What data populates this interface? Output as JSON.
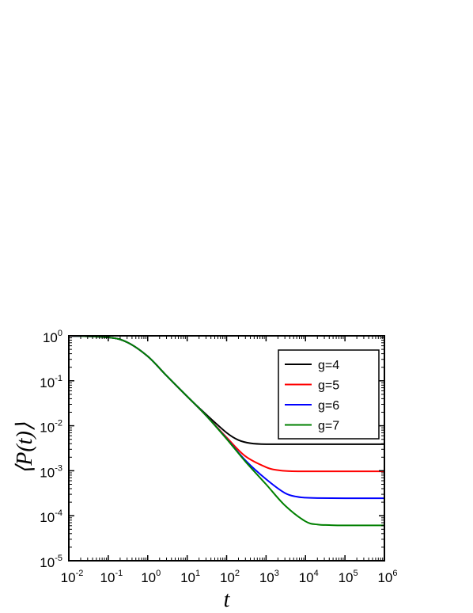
{
  "chart_data": {
    "type": "line",
    "title": "",
    "xlabel": "t",
    "ylabel": "⟨P(t)⟩",
    "xscale": "log",
    "yscale": "log",
    "xlim": [
      0.01,
      1000000
    ],
    "ylim": [
      1e-05,
      1
    ],
    "x_ticks": [
      {
        "base": "10",
        "exp": "-2"
      },
      {
        "base": "10",
        "exp": "-1"
      },
      {
        "base": "10",
        "exp": "0"
      },
      {
        "base": "10",
        "exp": "1"
      },
      {
        "base": "10",
        "exp": "2"
      },
      {
        "base": "10",
        "exp": "3"
      },
      {
        "base": "10",
        "exp": "4"
      },
      {
        "base": "10",
        "exp": "5"
      },
      {
        "base": "10",
        "exp": "6"
      }
    ],
    "y_ticks": [
      {
        "base": "10",
        "exp": "0"
      },
      {
        "base": "10",
        "exp": "-1"
      },
      {
        "base": "10",
        "exp": "-2"
      },
      {
        "base": "10",
        "exp": "-3"
      },
      {
        "base": "10",
        "exp": "-4"
      },
      {
        "base": "10",
        "exp": "-5"
      }
    ],
    "legend_position": "top-right",
    "grid": false,
    "series": [
      {
        "name": "g=4",
        "color": "#000000",
        "x": [
          0.01,
          0.1,
          0.3,
          1,
          3,
          10,
          30,
          100,
          200,
          400,
          1000,
          10000,
          100000,
          1000000
        ],
        "y": [
          1.0,
          0.92,
          0.72,
          0.35,
          0.13,
          0.045,
          0.018,
          0.007,
          0.0048,
          0.0041,
          0.0039,
          0.0039,
          0.0039,
          0.0039
        ]
      },
      {
        "name": "g=5",
        "color": "#ff0000",
        "x": [
          0.01,
          0.1,
          0.3,
          1,
          3,
          10,
          30,
          100,
          300,
          1000,
          2000,
          4000,
          10000,
          100000,
          1000000
        ],
        "y": [
          1.0,
          0.92,
          0.72,
          0.35,
          0.13,
          0.045,
          0.017,
          0.0055,
          0.0021,
          0.0012,
          0.00103,
          0.00098,
          0.00097,
          0.00097,
          0.00097
        ]
      },
      {
        "name": "g=6",
        "color": "#0000ff",
        "x": [
          0.01,
          0.1,
          0.3,
          1,
          3,
          10,
          30,
          100,
          300,
          1000,
          3000,
          6000,
          10000,
          20000,
          100000,
          1000000
        ],
        "y": [
          1.0,
          0.92,
          0.72,
          0.35,
          0.13,
          0.045,
          0.017,
          0.0052,
          0.0017,
          0.00065,
          0.00032,
          0.000265,
          0.000252,
          0.000247,
          0.000245,
          0.000245
        ]
      },
      {
        "name": "g=7",
        "color": "#008000",
        "x": [
          0.01,
          0.1,
          0.3,
          1,
          3,
          10,
          30,
          100,
          300,
          1000,
          3000,
          10000,
          20000,
          40000,
          100000,
          1000000
        ],
        "y": [
          1.0,
          0.92,
          0.72,
          0.35,
          0.13,
          0.045,
          0.017,
          0.0051,
          0.0016,
          0.0005,
          0.00017,
          7.5e-05,
          6.4e-05,
          6.2e-05,
          6.1e-05,
          6.1e-05
        ]
      }
    ]
  }
}
